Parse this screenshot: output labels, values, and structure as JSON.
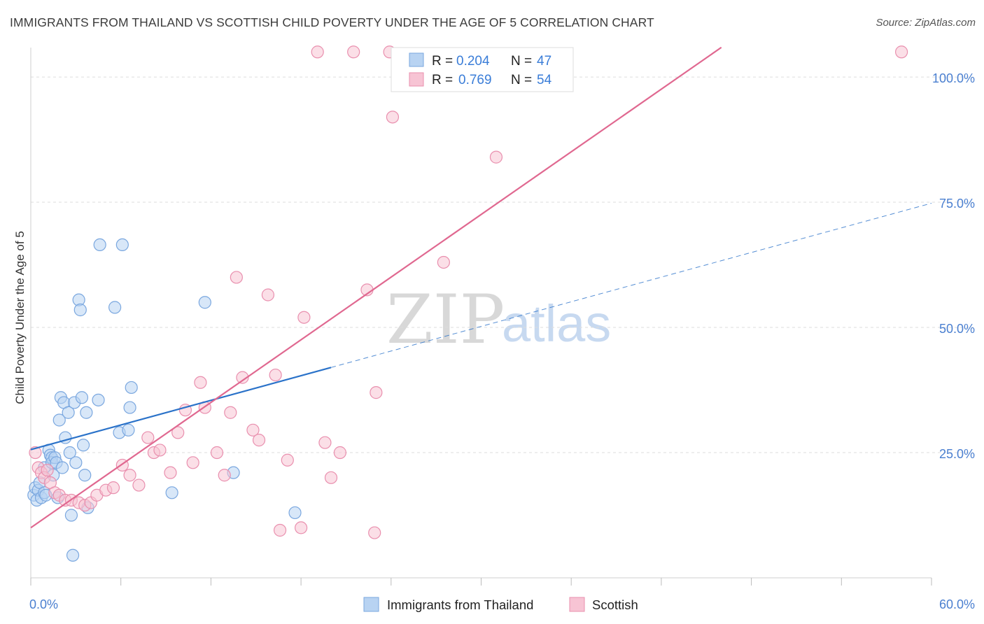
{
  "header": {
    "title": "IMMIGRANTS FROM THAILAND VS SCOTTISH CHILD POVERTY UNDER THE AGE OF 5 CORRELATION CHART",
    "source": "Source: ZipAtlas.com"
  },
  "watermark": {
    "part1": "ZIP",
    "part2": "atlas"
  },
  "legend": {
    "rows": [
      {
        "r_label": "R =",
        "r_value": "0.204",
        "n_label": "N =",
        "n_value": "47"
      },
      {
        "r_label": "R =",
        "r_value": "0.769",
        "n_label": "N =",
        "n_value": "54"
      }
    ]
  },
  "bottom_legend": {
    "items": [
      "Immigrants from Thailand",
      "Scottish"
    ]
  },
  "colors": {
    "blue_fill": "#b8d3f2",
    "blue_stroke": "#7aa7df",
    "blue_line": "#2a72c9",
    "pink_fill": "#f7c4d4",
    "pink_stroke": "#e98fae",
    "pink_line": "#e06890",
    "grid": "#dddddd",
    "tick_text": "#4a7fd0"
  },
  "chart_data": {
    "type": "scatter",
    "title": "IMMIGRANTS FROM THAILAND VS SCOTTISH CHILD POVERTY UNDER THE AGE OF 5 CORRELATION CHART",
    "xlabel": "",
    "ylabel": "Child Poverty Under the Age of 5",
    "xlim": [
      0,
      60
    ],
    "ylim": [
      0,
      105
    ],
    "x_tick_labels": [
      "0.0%",
      "60.0%"
    ],
    "y_ticks": [
      25,
      50,
      75,
      100
    ],
    "y_tick_labels": [
      "25.0%",
      "50.0%",
      "75.0%",
      "100.0%"
    ],
    "grid": true,
    "legend_position": "top-center",
    "series": [
      {
        "name": "Immigrants from Thailand",
        "r": 0.204,
        "n": 47,
        "points": [
          [
            0.2,
            16.5
          ],
          [
            0.3,
            18.0
          ],
          [
            0.4,
            15.5
          ],
          [
            0.5,
            17.5
          ],
          [
            0.6,
            19.0
          ],
          [
            0.7,
            16.0
          ],
          [
            0.9,
            17.0
          ],
          [
            0.9,
            22.0
          ],
          [
            1.0,
            16.5
          ],
          [
            1.2,
            25.5
          ],
          [
            1.3,
            24.5
          ],
          [
            1.4,
            24.0
          ],
          [
            1.4,
            23.0
          ],
          [
            1.5,
            20.5
          ],
          [
            1.6,
            24.0
          ],
          [
            1.7,
            23.0
          ],
          [
            1.8,
            16.0
          ],
          [
            1.9,
            31.5
          ],
          [
            2.0,
            36.0
          ],
          [
            2.1,
            22.0
          ],
          [
            2.2,
            35.0
          ],
          [
            2.3,
            28.0
          ],
          [
            2.5,
            33.0
          ],
          [
            2.6,
            25.0
          ],
          [
            2.7,
            12.5
          ],
          [
            2.8,
            4.5
          ],
          [
            2.9,
            35.0
          ],
          [
            3.0,
            23.0
          ],
          [
            3.2,
            55.5
          ],
          [
            3.3,
            53.5
          ],
          [
            3.4,
            36.0
          ],
          [
            3.5,
            26.5
          ],
          [
            3.6,
            20.5
          ],
          [
            3.7,
            33.0
          ],
          [
            3.8,
            14.0
          ],
          [
            4.5,
            35.5
          ],
          [
            4.6,
            66.5
          ],
          [
            5.6,
            54.0
          ],
          [
            5.9,
            29.0
          ],
          [
            6.1,
            66.5
          ],
          [
            6.5,
            29.5
          ],
          [
            6.6,
            34.0
          ],
          [
            6.7,
            38.0
          ],
          [
            9.4,
            17.0
          ],
          [
            11.6,
            55.0
          ],
          [
            13.5,
            21.0
          ],
          [
            17.6,
            13.0
          ]
        ]
      },
      {
        "name": "Scottish",
        "r": 0.769,
        "n": 54,
        "points": [
          [
            0.3,
            25.0
          ],
          [
            0.5,
            22.0
          ],
          [
            0.7,
            21.0
          ],
          [
            0.9,
            20.0
          ],
          [
            1.1,
            21.5
          ],
          [
            1.3,
            19.0
          ],
          [
            1.6,
            17.0
          ],
          [
            1.9,
            16.5
          ],
          [
            2.3,
            15.5
          ],
          [
            2.7,
            15.5
          ],
          [
            3.2,
            15.0
          ],
          [
            3.6,
            14.5
          ],
          [
            4.0,
            15.0
          ],
          [
            4.4,
            16.5
          ],
          [
            5.0,
            17.5
          ],
          [
            5.5,
            18.0
          ],
          [
            6.1,
            22.5
          ],
          [
            6.6,
            20.5
          ],
          [
            7.2,
            18.5
          ],
          [
            7.8,
            28.0
          ],
          [
            8.2,
            25.0
          ],
          [
            8.6,
            25.5
          ],
          [
            9.3,
            21.0
          ],
          [
            9.8,
            29.0
          ],
          [
            10.3,
            33.5
          ],
          [
            10.8,
            23.0
          ],
          [
            11.3,
            39.0
          ],
          [
            11.6,
            34.0
          ],
          [
            12.4,
            25.0
          ],
          [
            12.9,
            20.5
          ],
          [
            13.3,
            33.0
          ],
          [
            13.7,
            60.0
          ],
          [
            14.1,
            40.0
          ],
          [
            14.8,
            29.5
          ],
          [
            15.2,
            27.5
          ],
          [
            15.8,
            56.5
          ],
          [
            16.3,
            40.5
          ],
          [
            16.6,
            9.5
          ],
          [
            17.1,
            23.5
          ],
          [
            18.0,
            10.0
          ],
          [
            18.2,
            52.0
          ],
          [
            19.1,
            105.0
          ],
          [
            19.6,
            27.0
          ],
          [
            20.0,
            20.0
          ],
          [
            20.6,
            25.0
          ],
          [
            21.5,
            105.0
          ],
          [
            22.4,
            57.5
          ],
          [
            22.9,
            9.0
          ],
          [
            23.0,
            37.0
          ],
          [
            23.9,
            105.0
          ],
          [
            24.1,
            92.0
          ],
          [
            27.5,
            63.0
          ],
          [
            31.0,
            84.0
          ],
          [
            58.0,
            105.0
          ]
        ]
      }
    ],
    "trendlines": [
      {
        "series": "Immigrants from Thailand",
        "solid_x": [
          0,
          20
        ],
        "dashed_x": [
          20,
          60
        ],
        "y_at_0": 25.6,
        "slope": 0.82
      },
      {
        "series": "Scottish",
        "x": [
          0,
          46
        ],
        "y_at_0": 10.0,
        "slope": 2.085
      }
    ]
  }
}
